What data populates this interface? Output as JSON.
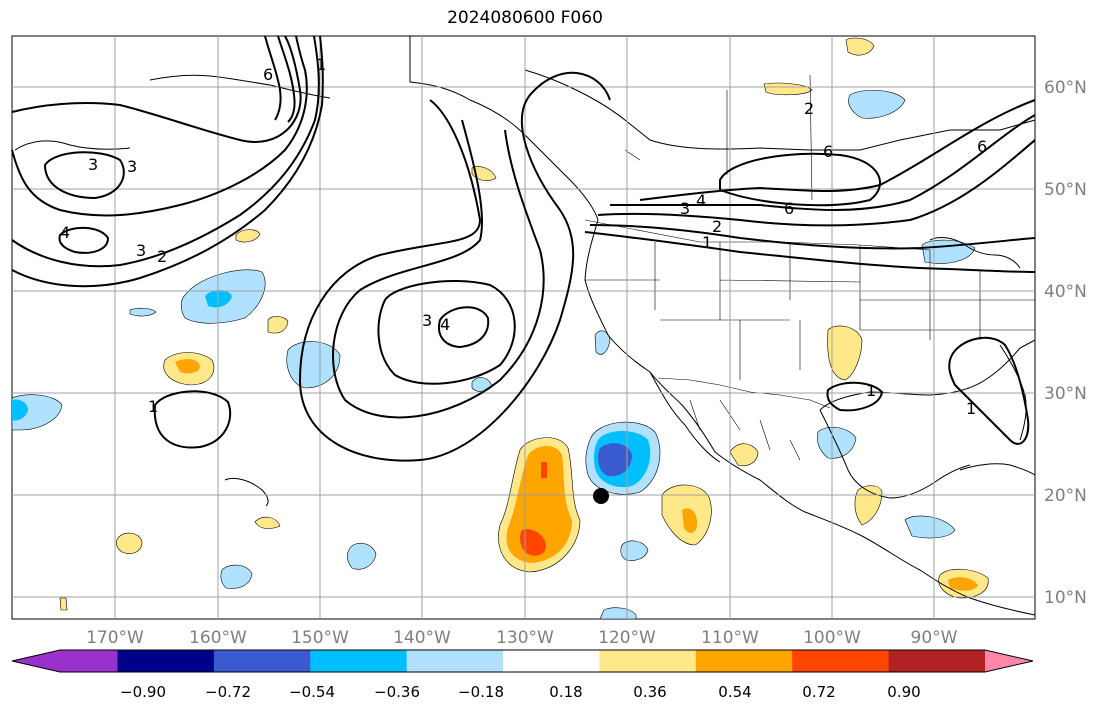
{
  "title": "2024080600 F060",
  "map": {
    "lon_labels": [
      "170°W",
      "160°W",
      "150°W",
      "140°W",
      "130°W",
      "120°W",
      "110°W",
      "100°W",
      "90°W"
    ],
    "lat_labels": [
      "60°N",
      "50°N",
      "40°N",
      "30°N",
      "20°N",
      "10°N"
    ],
    "contour_labels": [
      "1",
      "6",
      "3",
      "3",
      "4",
      "3",
      "2",
      "1",
      "3",
      "4",
      "4",
      "3",
      "2",
      "1",
      "6",
      "6",
      "1",
      "1",
      "2",
      "6"
    ],
    "marker": {
      "label": "black-dot",
      "lon": -122.5,
      "lat": 20.0
    }
  },
  "colorbar": {
    "ticks": [
      "−0.90",
      "−0.72",
      "−0.54",
      "−0.36",
      "−0.18",
      "0.18",
      "0.36",
      "0.54",
      "0.72",
      "0.90"
    ],
    "colors": [
      "#9932cc",
      "#00008b",
      "#3a5bd0",
      "#00bfff",
      "#b0e2ff",
      "#ffffff",
      "#ffe88a",
      "#ffa500",
      "#ff4500",
      "#b22222",
      "#ff88aa"
    ]
  }
}
